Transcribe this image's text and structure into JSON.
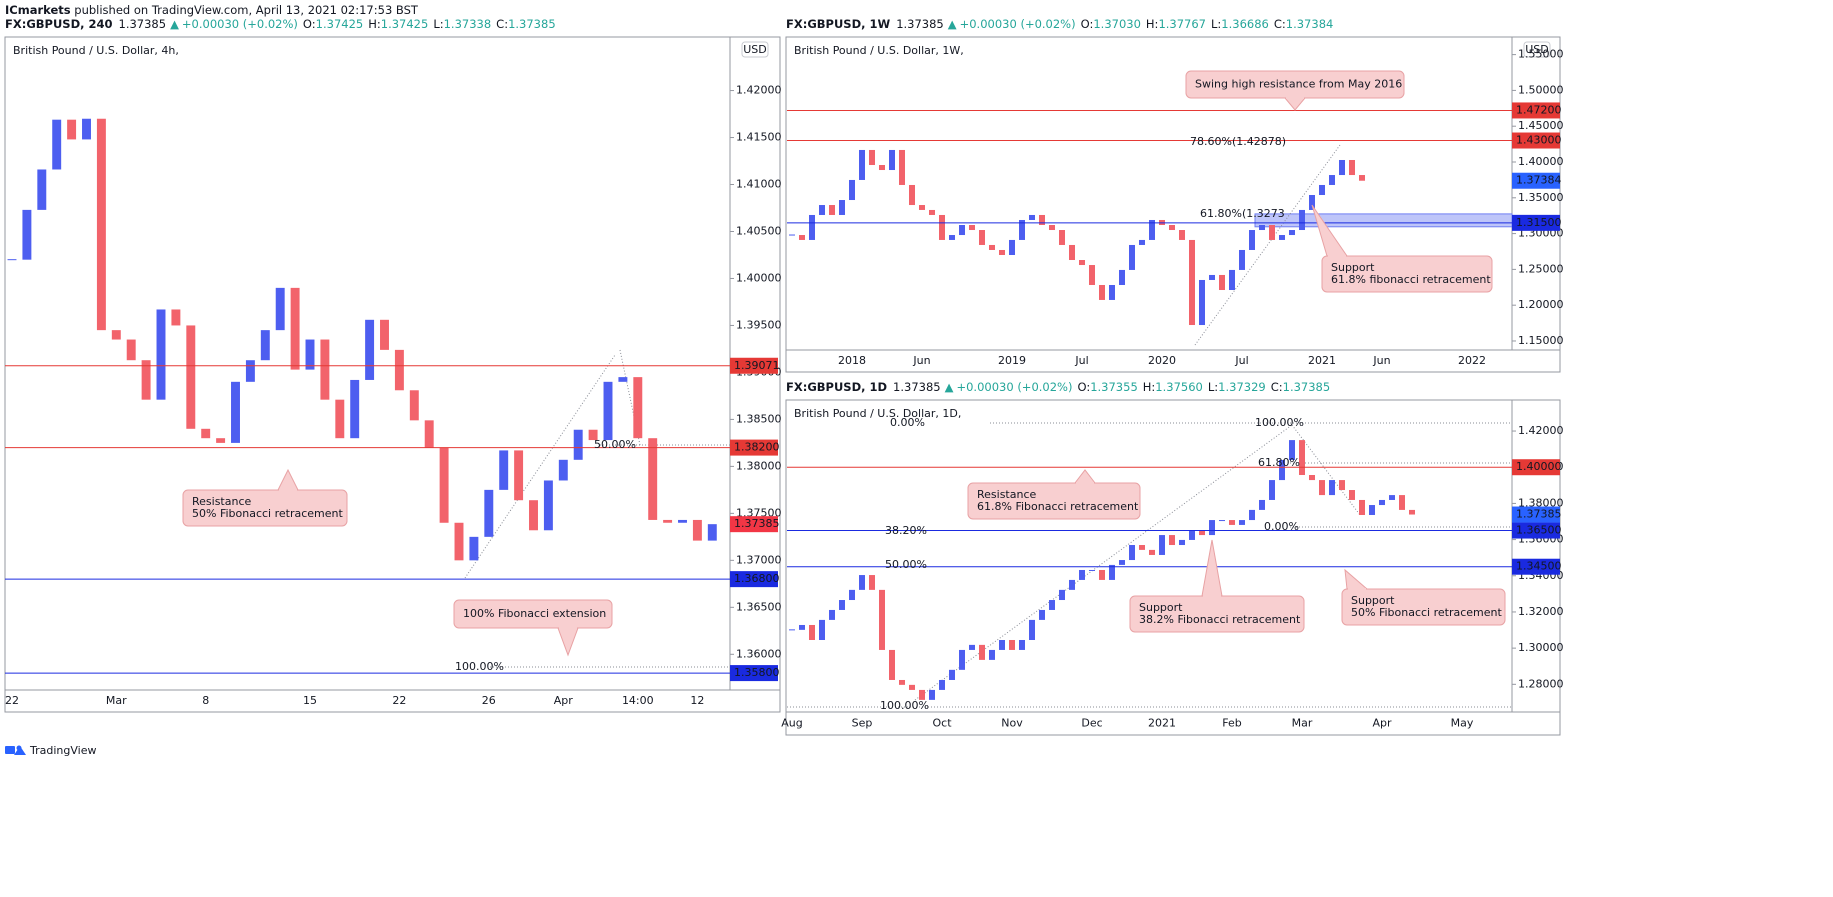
{
  "header": {
    "publisher": "ICmarkets",
    "published": " published on TradingView.com, April 13, 2021 02:17:53 BST"
  },
  "footer": {
    "brand": "TradingView"
  },
  "chart_data": [
    {
      "type": "candlestick",
      "header": {
        "symbol": "FX:GBPUSD, 240",
        "price": "1.37385",
        "arrow": "▲",
        "change": "+0.00030 (+0.02%)",
        "ohlc": [
          {
            "key": "O:",
            "text": "1.37425"
          },
          {
            "key": "H:",
            "text": "1.37425"
          },
          {
            "key": "L:",
            "text": "1.37338"
          },
          {
            "key": "C:",
            "text": "1.37385"
          }
        ]
      },
      "title": "British Pound / U.S. Dollar, 4h,",
      "currency": "USD",
      "up_color": "#4d5ef0",
      "down_color": "#f2636b",
      "grid": false,
      "categories": [
        "22",
        null,
        null,
        null,
        null,
        null,
        null,
        "Mar",
        null,
        null,
        null,
        null,
        null,
        "8",
        null,
        null,
        null,
        null,
        null,
        null,
        "15",
        null,
        null,
        null,
        null,
        null,
        "22",
        null,
        null,
        null,
        null,
        null,
        "26",
        null,
        null,
        null,
        null,
        "Apr",
        null,
        null,
        null,
        null,
        "14:00",
        null,
        null,
        null,
        "12",
        null
      ],
      "values": [
        1.402,
        1.4073,
        1.4116,
        1.4169,
        1.4148,
        1.417,
        1.3945,
        1.3935,
        1.3913,
        1.3871,
        1.3967,
        1.395,
        1.384,
        1.383,
        1.3825,
        1.389,
        1.3913,
        1.3945,
        1.399,
        1.3903,
        1.3935,
        1.3871,
        1.383,
        1.3892,
        1.3956,
        1.3924,
        1.3881,
        1.3849,
        1.382,
        1.374,
        1.37,
        1.3725,
        1.3775,
        1.3817,
        1.3764,
        1.3732,
        1.3785,
        1.3807,
        1.3839,
        1.3828,
        1.389,
        1.3895,
        1.383,
        1.3743,
        1.374,
        1.3743,
        1.3721,
        1.37385
      ],
      "ylim": [
        1.3562,
        1.4257
      ],
      "yticks": [
        {
          "value": 1.36,
          "label": "1.36000"
        },
        {
          "value": 1.365,
          "label": "1.36500"
        },
        {
          "value": 1.37,
          "label": "1.37000"
        },
        {
          "value": 1.375,
          "label": "1.37500"
        },
        {
          "value": 1.38,
          "label": "1.38000"
        },
        {
          "value": 1.385,
          "label": "1.38500"
        },
        {
          "value": 1.39,
          "label": "1.39000"
        },
        {
          "value": 1.395,
          "label": "1.39500"
        },
        {
          "value": 1.4,
          "label": "1.40000"
        },
        {
          "value": 1.405,
          "label": "1.40500"
        },
        {
          "value": 1.41,
          "label": "1.41000"
        },
        {
          "value": 1.415,
          "label": "1.41500"
        },
        {
          "value": 1.42,
          "label": "1.42000"
        }
      ],
      "hlines": [
        {
          "value": 1.39071,
          "label": "1.39071",
          "color": "#e53935"
        },
        {
          "value": 1.382,
          "label": "1.38200",
          "color": "#e53935"
        },
        {
          "value": 1.368,
          "label": "1.36800",
          "color": "#1a2ae0"
        },
        {
          "value": 1.358,
          "label": "1.35800",
          "color": "#1a2ae0"
        }
      ],
      "last_price": {
        "value": 1.37385,
        "label": "1.37385",
        "color": "#f23645"
      },
      "fibs": [
        {
          "label": "50.00%",
          "color": "#2962ff"
        },
        {
          "label": "100.00%",
          "color": "#2962ff"
        }
      ],
      "annotations": [
        {
          "lines": [
            "Resistance",
            "50% Fibonacci retracement"
          ]
        },
        {
          "lines": [
            "100% Fibonacci extension"
          ]
        }
      ]
    },
    {
      "type": "candlestick",
      "header": {
        "symbol": "FX:GBPUSD, 1W",
        "price": "1.37385",
        "arrow": "▲",
        "change": "+0.00030 (+0.02%)",
        "ohlc": [
          {
            "key": "O:",
            "text": "1.37030"
          },
          {
            "key": "H:",
            "text": "1.37767"
          },
          {
            "key": "L:",
            "text": "1.36686"
          },
          {
            "key": "C:",
            "text": "1.37384"
          }
        ]
      },
      "title": "British Pound / U.S. Dollar, 1W,",
      "currency": "USD",
      "up_color": "#4d5ef0",
      "down_color": "#f2636b",
      "grid": false,
      "categories": [
        null,
        null,
        null,
        null,
        null,
        null,
        "2018",
        null,
        null,
        null,
        null,
        null,
        null,
        "Jun",
        null,
        null,
        null,
        null,
        null,
        null,
        null,
        null,
        "2019",
        null,
        null,
        null,
        null,
        null,
        null,
        "Jul",
        null,
        null,
        null,
        null,
        null,
        null,
        null,
        "2020",
        null,
        null,
        null,
        null,
        null,
        null,
        null,
        "Jul",
        null,
        null,
        null,
        null,
        null,
        null,
        null,
        "2021",
        null,
        null,
        null,
        null,
        null,
        "Jun",
        null,
        null,
        null,
        null,
        null,
        null,
        null,
        null,
        "2022",
        null,
        null,
        null
      ],
      "values": [
        1.298,
        1.2911,
        1.326,
        1.3399,
        1.326,
        1.3469,
        1.3749,
        1.4168,
        1.3958,
        1.3888,
        1.4168,
        1.3679,
        1.3399,
        1.333,
        1.326,
        1.2911,
        1.298,
        1.312,
        1.305,
        1.2841,
        1.2771,
        1.2701,
        1.2911,
        1.319,
        1.326,
        1.312,
        1.305,
        1.2841,
        1.2631,
        1.2561,
        1.2282,
        1.2073,
        1.2282,
        1.2492,
        1.2841,
        1.2911,
        1.319,
        1.312,
        1.305,
        1.2911,
        1.1723,
        1.2352,
        1.2422,
        1.2212,
        1.2492,
        1.2771,
        1.305,
        1.312,
        1.2911,
        1.298,
        1.305,
        1.333,
        1.3539,
        1.3679,
        1.3818,
        1.4028,
        1.3818,
        1.37384,
        null,
        null,
        null,
        null,
        null,
        null,
        null,
        null,
        null,
        null,
        null,
        null,
        null,
        null
      ],
      "ylim": [
        1.1374,
        1.5746
      ],
      "yticks": [
        {
          "value": 1.15,
          "label": "1.15000"
        },
        {
          "value": 1.2,
          "label": "1.20000"
        },
        {
          "value": 1.25,
          "label": "1.25000"
        },
        {
          "value": 1.3,
          "label": "1.30000"
        },
        {
          "value": 1.35,
          "label": "1.35000"
        },
        {
          "value": 1.4,
          "label": "1.40000"
        },
        {
          "value": 1.45,
          "label": "1.45000"
        },
        {
          "value": 1.5,
          "label": "1.50000"
        },
        {
          "value": 1.55,
          "label": "1.55000"
        }
      ],
      "hlines": [
        {
          "value": 1.472,
          "label": "1.47200",
          "color": "#e53935"
        },
        {
          "value": 1.43,
          "label": "1.43000",
          "color": "#e53935"
        },
        {
          "value": 1.315,
          "label": "1.31500",
          "color": "#1a2ae0"
        }
      ],
      "zones": [
        {
          "low": 1.3095,
          "high": 1.3275,
          "color": "#6f7ef2"
        }
      ],
      "last_price": {
        "value": 1.37384,
        "label": "1.37384",
        "color": "#2962ff"
      },
      "fibs": [
        {
          "label": "78.60%(1.42878)",
          "color": "#4a90d9"
        },
        {
          "label": "61.80%(1.3273",
          "color": "#c9a000"
        }
      ],
      "annotations": [
        {
          "lines": [
            "Swing high resistance from May 2016"
          ]
        },
        {
          "lines": [
            "Support",
            "61.8% fibonacci retracement"
          ]
        }
      ]
    },
    {
      "type": "candlestick",
      "header": {
        "symbol": "FX:GBPUSD, 1D",
        "price": "1.37385",
        "arrow": "▲",
        "change": "+0.00030 (+0.02%)",
        "ohlc": [
          {
            "key": "O:",
            "text": "1.37355"
          },
          {
            "key": "H:",
            "text": "1.37560"
          },
          {
            "key": "L:",
            "text": "1.37329"
          },
          {
            "key": "C:",
            "text": "1.37385"
          }
        ]
      },
      "title": "British Pound / U.S. Dollar, 1D,",
      "up_color": "#4d5ef0",
      "down_color": "#f2636b",
      "grid": false,
      "categories": [
        "Aug",
        null,
        null,
        null,
        null,
        null,
        null,
        "Sep",
        null,
        null,
        null,
        null,
        null,
        null,
        null,
        "Oct",
        null,
        null,
        null,
        null,
        null,
        null,
        "Nov",
        null,
        null,
        null,
        null,
        null,
        null,
        null,
        "Dec",
        null,
        null,
        null,
        null,
        null,
        null,
        "2021",
        null,
        null,
        null,
        null,
        null,
        null,
        "Feb",
        null,
        null,
        null,
        null,
        null,
        null,
        "Mar",
        null,
        null,
        null,
        null,
        null,
        null,
        null,
        "Apr",
        null,
        null,
        null,
        null,
        null,
        null,
        null,
        "May",
        null,
        null,
        null,
        null
      ],
      "values": [
        1.3101,
        1.3128,
        1.3045,
        1.3156,
        1.3211,
        1.3266,
        1.3322,
        1.3404,
        1.3322,
        1.299,
        1.2824,
        1.2797,
        1.2769,
        1.2714,
        1.2769,
        1.2824,
        1.288,
        1.299,
        1.3018,
        1.2935,
        1.299,
        1.3045,
        1.299,
        1.3045,
        1.3156,
        1.3211,
        1.3266,
        1.3322,
        1.3377,
        1.3432,
        1.3432,
        1.3377,
        1.346,
        1.3487,
        1.357,
        1.3543,
        1.3515,
        1.3625,
        1.357,
        1.3598,
        1.3653,
        1.3625,
        1.3708,
        1.3708,
        1.3681,
        1.3708,
        1.3764,
        1.3819,
        1.3929,
        1.404,
        1.415,
        1.3957,
        1.3929,
        1.3846,
        1.3929,
        1.3874,
        1.3819,
        1.3736,
        1.3791,
        1.3819,
        1.3846,
        1.3764,
        1.37385,
        null,
        null,
        null,
        null,
        null,
        null,
        null,
        null,
        null
      ],
      "ylim": [
        1.2647,
        1.4355
      ],
      "yticks": [
        {
          "value": 1.28,
          "label": "1.28000"
        },
        {
          "value": 1.3,
          "label": "1.30000"
        },
        {
          "value": 1.32,
          "label": "1.32000"
        },
        {
          "value": 1.34,
          "label": "1.34000"
        },
        {
          "value": 1.36,
          "label": "1.36000"
        },
        {
          "value": 1.38,
          "label": "1.38000"
        },
        {
          "value": 1.4,
          "label": "1.40000"
        },
        {
          "value": 1.42,
          "label": "1.42000"
        }
      ],
      "hlines": [
        {
          "value": 1.4,
          "label": "1.40000",
          "color": "#e53935"
        },
        {
          "value": 1.365,
          "label": "1.36500",
          "color": "#1a2ae0"
        },
        {
          "value": 1.345,
          "label": "1.34500",
          "color": "#1a2ae0"
        }
      ],
      "last_price": {
        "value": 1.37385,
        "label": "1.37385",
        "color": "#2962ff"
      },
      "fibs": [
        {
          "label": "100.00%",
          "color": "#888888"
        },
        {
          "label": "0.00%",
          "color": "#888888"
        },
        {
          "label": "61.80%",
          "color": "#c9a000"
        },
        {
          "label": "0.00%",
          "color": "#888888"
        },
        {
          "label": "38.20%",
          "color": "#2962ff"
        },
        {
          "label": "50.00%",
          "color": "#2962ff"
        },
        {
          "label": "100.00%",
          "color": "#888888"
        }
      ],
      "annotations": [
        {
          "lines": [
            "Resistance",
            "61.8% Fibonacci retracement"
          ]
        },
        {
          "lines": [
            "Support",
            "38.2% Fibonacci retracement"
          ]
        },
        {
          "lines": [
            "Support",
            "50% Fibonacci retracement"
          ]
        }
      ]
    }
  ]
}
